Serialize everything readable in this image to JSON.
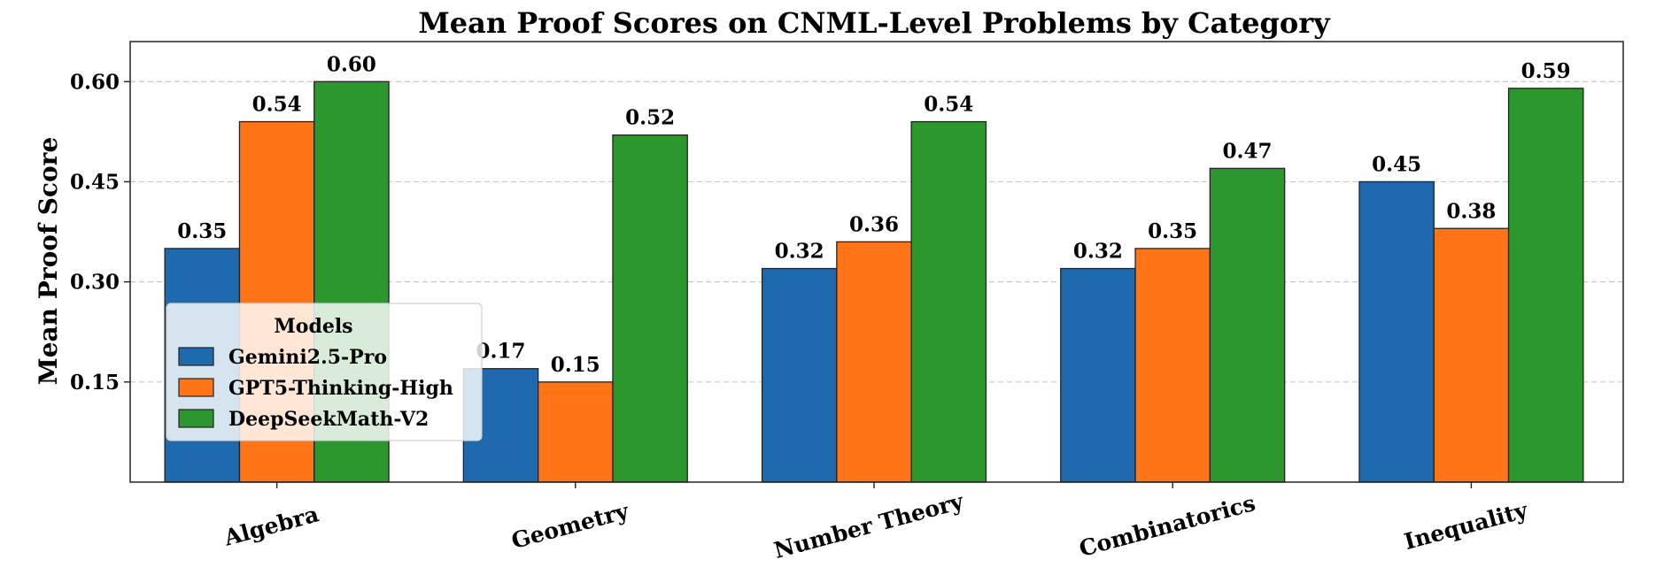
{
  "chart_data": {
    "type": "bar",
    "title": "Mean Proof Scores on CNML-Level Problems by Category",
    "xlabel": "",
    "ylabel": "Mean Proof Score",
    "categories": [
      "Algebra",
      "Geometry",
      "Number Theory",
      "Combinatorics",
      "Inequality"
    ],
    "series": [
      {
        "name": "Gemini2.5-Pro",
        "color": "#1f6aae",
        "values": [
          0.35,
          0.17,
          0.32,
          0.32,
          0.45
        ],
        "labels": [
          "0.35",
          "0.17",
          "0.32",
          "0.32",
          "0.45"
        ]
      },
      {
        "name": "GPT5-Thinking-High",
        "color": "#ff7417",
        "values": [
          0.54,
          0.15,
          0.36,
          0.35,
          0.38
        ],
        "labels": [
          "0.54",
          "0.15",
          "0.36",
          "0.35",
          "0.38"
        ]
      },
      {
        "name": "DeepSeekMath-V2",
        "color": "#2c972c",
        "values": [
          0.6,
          0.52,
          0.54,
          0.47,
          0.59
        ],
        "labels": [
          "0.60",
          "0.52",
          "0.54",
          "0.47",
          "0.59"
        ]
      }
    ],
    "yticks": [
      0.15,
      0.3,
      0.45,
      0.6
    ],
    "ytick_labels": [
      "0.15",
      "0.30",
      "0.45",
      "0.60"
    ],
    "ylim": [
      0,
      0.66
    ],
    "grid": true,
    "legend": {
      "title": "Models",
      "placement": "center-left"
    }
  }
}
